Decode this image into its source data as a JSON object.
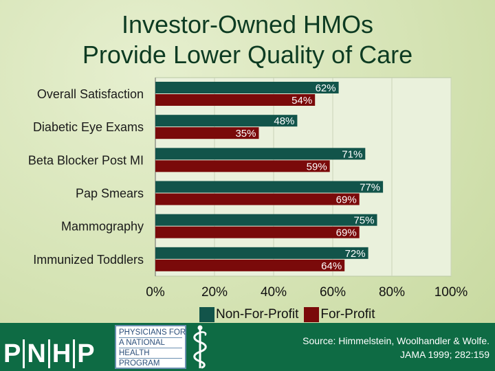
{
  "title": {
    "line1": "Investor-Owned HMOs",
    "line2": "Provide Lower Quality of Care"
  },
  "colors": {
    "non_for_profit": "#12544a",
    "for_profit": "#7a0a0a",
    "footer_bg": "#0e6b44",
    "title": "#0d3b22"
  },
  "chart_data": {
    "type": "bar",
    "orientation": "horizontal",
    "categories": [
      "Overall Satisfaction",
      "Diabetic Eye Exams",
      "Beta Blocker Post MI",
      "Pap Smears",
      "Mammography",
      "Immunized Toddlers"
    ],
    "series": [
      {
        "name": "Non-For-Profit",
        "values": [
          62,
          48,
          71,
          77,
          75,
          72
        ],
        "labels": [
          "62%",
          "48%",
          "71%",
          "77%",
          "75%",
          "72%"
        ]
      },
      {
        "name": "For-Profit",
        "values": [
          54,
          35,
          59,
          69,
          69,
          64
        ],
        "labels": [
          "54%",
          "35%",
          "59%",
          "69%",
          "69%",
          "64%"
        ]
      }
    ],
    "xlim": [
      0,
      100
    ],
    "xticks": [
      "0%",
      "20%",
      "40%",
      "60%",
      "80%",
      "100%"
    ],
    "grid": true,
    "legend_position": "bottom"
  },
  "footer": {
    "logo_letters": [
      "P",
      "N",
      "H",
      "P"
    ],
    "logo_box_lines": [
      "PHYSICIANS FOR",
      "A NATIONAL",
      "HEALTH",
      "PROGRAM"
    ],
    "source_line1": "Source: Himmelstein, Woolhandler & Wolfe.",
    "source_line2": "JAMA 1999; 282:159"
  }
}
